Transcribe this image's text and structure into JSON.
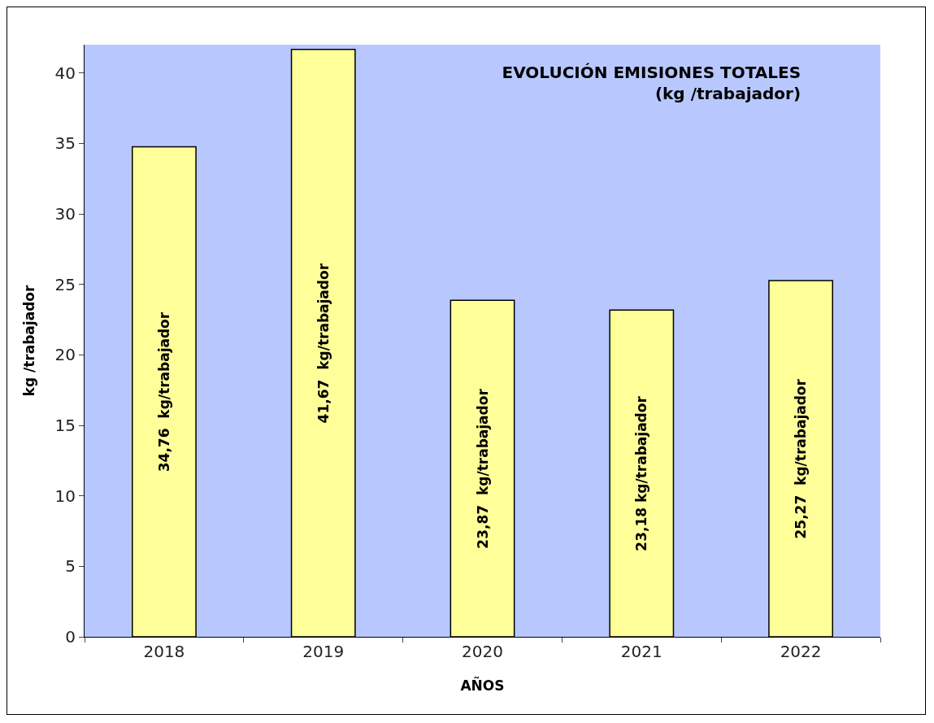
{
  "chart_data": {
    "type": "bar",
    "title": "EVOLUCIÓN EMISIONES TOTALES\n(kg /trabajador)",
    "xlabel": "AÑOS",
    "ylabel": "kg /trabajador",
    "categories": [
      "2018",
      "2019",
      "2020",
      "2021",
      "2022"
    ],
    "values": [
      34.76,
      41.67,
      23.87,
      23.18,
      25.27
    ],
    "value_labels": [
      "34,76  kg/trabajador",
      "41,67  kg/trabajador",
      "23,87  kg/trabajador",
      "23,18 kg/trabajador",
      "25,27  kg/trabajador"
    ],
    "color": "#ffff99",
    "ylim": [
      0,
      42
    ],
    "yticks": [
      0,
      5,
      10,
      15,
      20,
      25,
      30,
      35,
      40
    ],
    "grid": false
  }
}
